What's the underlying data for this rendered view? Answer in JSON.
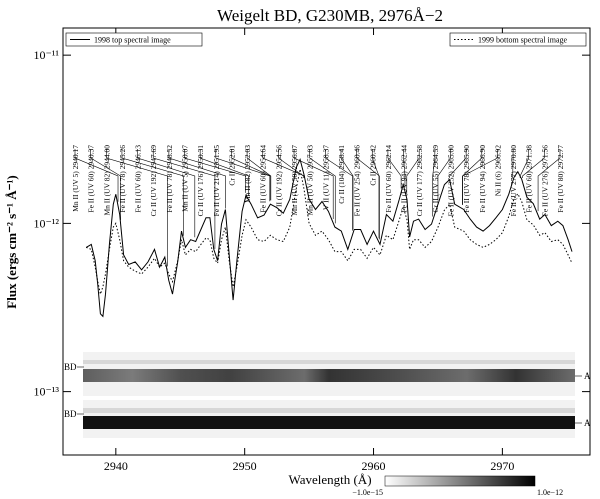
{
  "chart_data": {
    "type": "line",
    "title": "Weigelt BD, G230MB, 2976Å−2",
    "xlabel": "Wavelength (Å)",
    "ylabel": "Flux (ergs cm⁻² s⁻¹ Å⁻¹)",
    "xlim": [
      2935.9,
      2976.8
    ],
    "ylim": [
      4.2e-14,
      1.45e-11
    ],
    "log_y": true,
    "xticks": [
      2940,
      2950,
      2960,
      2970
    ],
    "yticks": [
      {
        "value": 1e-11,
        "label": "10⁻¹¹"
      },
      {
        "value": 1e-12,
        "label": "10⁻¹²"
      },
      {
        "value": 1e-13,
        "label": "10⁻¹³"
      }
    ],
    "x": [
      2937.7,
      2938.1,
      2938.4,
      2938.6,
      2938.8,
      2939.0,
      2939.2,
      2939.5,
      2939.8,
      2940.0,
      2940.3,
      2940.6,
      2941.0,
      2941.5,
      2942.0,
      2942.5,
      2943.0,
      2943.4,
      2943.8,
      2944.1,
      2944.4,
      2944.8,
      2945.1,
      2945.4,
      2945.8,
      2946.2,
      2946.6,
      2947.0,
      2947.3,
      2947.6,
      2947.9,
      2948.2,
      2948.5,
      2948.8,
      2949.1,
      2949.4,
      2949.8,
      2950.1,
      2950.5,
      2951.0,
      2951.5,
      2952.0,
      2952.5,
      2953.0,
      2953.5,
      2954.0,
      2954.3,
      2954.6,
      2955.0,
      2955.5,
      2956.0,
      2956.5,
      2957.0,
      2957.5,
      2958.0,
      2958.5,
      2959.0,
      2959.5,
      2960.0,
      2960.5,
      2961.0,
      2961.5,
      2962.0,
      2962.3,
      2962.6,
      2962.8,
      2963.1,
      2963.5,
      2964.0,
      2964.5,
      2965.0,
      2965.5,
      2965.9,
      2966.3,
      2967.0,
      2967.5,
      2968.0,
      2968.5,
      2969.0,
      2969.5,
      2970.0,
      2970.5,
      2970.9,
      2971.2,
      2971.5,
      2971.9,
      2972.4,
      2972.9,
      2973.3,
      2973.8,
      2974.3,
      2974.7,
      2975.1,
      2975.4
    ],
    "series": [
      {
        "name": "1998 top spectral image",
        "color": "#000000",
        "dash": "solid",
        "values": [
          7.2e-13,
          7.5e-13,
          6e-13,
          4.3e-13,
          2.9e-13,
          2.8e-13,
          3.8e-13,
          7.5e-13,
          1.3e-12,
          1.49e-12,
          1.13e-12,
          6.5e-13,
          5.7e-13,
          5.9e-13,
          5.3e-13,
          5.9e-13,
          7e-13,
          5.5e-13,
          6.3e-13,
          4.6e-13,
          3.8e-13,
          5.9e-13,
          9e-13,
          7.2e-13,
          8e-13,
          7.8e-13,
          9.2e-13,
          1.08e-12,
          1.08e-12,
          7e-13,
          6e-13,
          9.9e-13,
          1.21e-12,
          6.5e-13,
          3.5e-13,
          6e-13,
          1.18e-12,
          1.47e-12,
          1.3e-12,
          1.08e-12,
          1.12e-12,
          1.3e-12,
          1.24e-12,
          1.15e-12,
          1.39e-12,
          2.15e-12,
          2.4e-12,
          1.95e-12,
          1.39e-12,
          1.21e-12,
          1.35e-12,
          1.18e-12,
          9.5e-13,
          9e-13,
          7e-13,
          9.2e-13,
          9.2e-13,
          7.5e-13,
          9e-13,
          7.5e-13,
          1.13e-12,
          1.03e-12,
          1.39e-12,
          1.7e-12,
          1.39e-12,
          8.3e-13,
          1.03e-12,
          1.06e-12,
          9.2e-13,
          9.9e-13,
          1.3e-12,
          1.7e-12,
          1.82e-12,
          1.3e-12,
          1.21e-12,
          1.06e-12,
          9.5e-13,
          9e-13,
          9.7e-13,
          1.08e-12,
          1.21e-12,
          1.49e-12,
          1.88e-12,
          2.03e-12,
          1.83e-12,
          1.43e-12,
          1.31e-12,
          1.06e-12,
          1.13e-12,
          9.7e-13,
          1.03e-12,
          9.7e-13,
          8e-13,
          6.8e-13
        ]
      },
      {
        "name": "1999 bottom spectral image",
        "color": "#000000",
        "dash": "dotted",
        "values": [
          7.2e-13,
          7e-13,
          5.5e-13,
          4.5e-13,
          3.8e-13,
          4.2e-13,
          5e-13,
          7e-13,
          9.5e-13,
          1e-12,
          8e-13,
          6e-13,
          5.5e-13,
          5.2e-13,
          5e-13,
          5.5e-13,
          6.2e-13,
          5.5e-13,
          5.8e-13,
          5e-13,
          4.5e-13,
          6e-13,
          8e-13,
          6.5e-13,
          7e-13,
          6.8e-13,
          7.5e-13,
          8.2e-13,
          8e-13,
          6.2e-13,
          5.8e-13,
          8e-13,
          9.5e-13,
          6e-13,
          4.2e-13,
          5.5e-13,
          8.5e-13,
          1.05e-12,
          9.5e-13,
          8e-13,
          7.8e-13,
          8.5e-13,
          8e-13,
          7.8e-13,
          9.5e-13,
          1.6e-12,
          2.1e-12,
          1.6e-12,
          1e-12,
          8.5e-13,
          9e-13,
          8e-13,
          6.8e-13,
          6.8e-13,
          6e-13,
          7e-13,
          7e-13,
          6.2e-13,
          7.2e-13,
          6.5e-13,
          8.5e-13,
          8e-13,
          1.05e-12,
          1.25e-12,
          1.05e-12,
          7e-13,
          8e-13,
          8e-13,
          7.2e-13,
          7.8e-13,
          9.5e-13,
          1.2e-12,
          1.3e-12,
          9.5e-13,
          9e-13,
          8e-13,
          7.5e-13,
          7.2e-13,
          7.5e-13,
          8e-13,
          8.8e-13,
          1.1e-12,
          1.4e-12,
          1.5e-12,
          1.35e-12,
          1.05e-12,
          9.8e-13,
          8.5e-13,
          8.8e-13,
          7.8e-13,
          8e-13,
          7.5e-13,
          6.5e-13,
          5.8e-13
        ]
      }
    ],
    "annotations": [
      {
        "text": "Mn II  (UV 5) 2940.17",
        "x": 2940.17
      },
      {
        "text": "Fe II  (UV 60) 2940.37",
        "x": 2940.37
      },
      {
        "text": "Mn II  (UV 82) 2944.00",
        "x": 2944.0
      },
      {
        "text": "Fe II  (UV 78) 2945.26",
        "x": 2945.26
      },
      {
        "text": "Fe II  (UV 60) 2946.13",
        "x": 2946.13
      },
      {
        "text": "Cr II  (UV 192) 2947.69",
        "x": 2947.69
      },
      {
        "text": "Fe II  (UV 78) 2948.52",
        "x": 2948.52
      },
      {
        "text": "Mn II  (UV 5) 2950.07",
        "x": 2950.07
      },
      {
        "text": "Cr II  (UV 176) 2950.31",
        "x": 2950.31
      },
      {
        "text": "Fe II  (UV 214) 2951.95",
        "x": 2951.95
      },
      {
        "text": "Cr II 2952.01",
        "x": 2952.01
      },
      {
        "text": "Mn II  (82) 2952.03",
        "x": 2952.03
      },
      {
        "text": "Fe II  (UV 60) 2954.64",
        "x": 2954.64
      },
      {
        "text": "Cr II  (UV 192) 2954.56",
        "x": 2954.56
      },
      {
        "text": "Mn II  (UV 50) 2956.87",
        "x": 2956.87
      },
      {
        "text": "Mn II  (UV 50) 2957.03",
        "x": 2957.03
      },
      {
        "text": "V II  (UV 11) 2958.37",
        "x": 2958.37
      },
      {
        "text": "Cr II  (104) 2958.41",
        "x": 2958.41
      },
      {
        "text": "Fe II  (UV 254) 2960.46",
        "x": 2960.46
      },
      {
        "text": "Cr II 2960.42",
        "x": 2960.42
      },
      {
        "text": "Fe II  (UV 60) 2962.14",
        "x": 2962.14
      },
      {
        "text": "Fe II  (UV 94) 2962.44",
        "x": 2962.44
      },
      {
        "text": "Cr II  (UV 177) 2962.58",
        "x": 2962.58
      },
      {
        "text": "Cr II  (UV 55) 2964.59",
        "x": 2964.59
      },
      {
        "text": "Fe II  (UV 252) 2965.00",
        "x": 2965.0
      },
      {
        "text": "Fe II  (UV 78) 2965.90",
        "x": 2965.9
      },
      {
        "text": "Fe II  (UV 94) 2966.90",
        "x": 2966.9
      },
      {
        "text": "Ni II  (6) 2966.92",
        "x": 2966.92
      },
      {
        "text": "Fe II  (UV 277) 2970.80",
        "x": 2970.8
      },
      {
        "text": "Fe II  (UV 60) 2971.38",
        "x": 2971.38
      },
      {
        "text": "Fe II  (UV 276) 2971.56",
        "x": 2971.56
      },
      {
        "text": "Fe II  (UV 80) 2972.77",
        "x": 2972.77
      }
    ],
    "image_labels": {
      "left": [
        "BD",
        "BD"
      ],
      "right": [
        "A",
        "A"
      ]
    },
    "colorbar": {
      "ticks": [
        {
          "value": -1e-15,
          "label": "−1.0e−15"
        },
        {
          "value": 1e-12,
          "label": "1.0e−12"
        }
      ]
    }
  }
}
